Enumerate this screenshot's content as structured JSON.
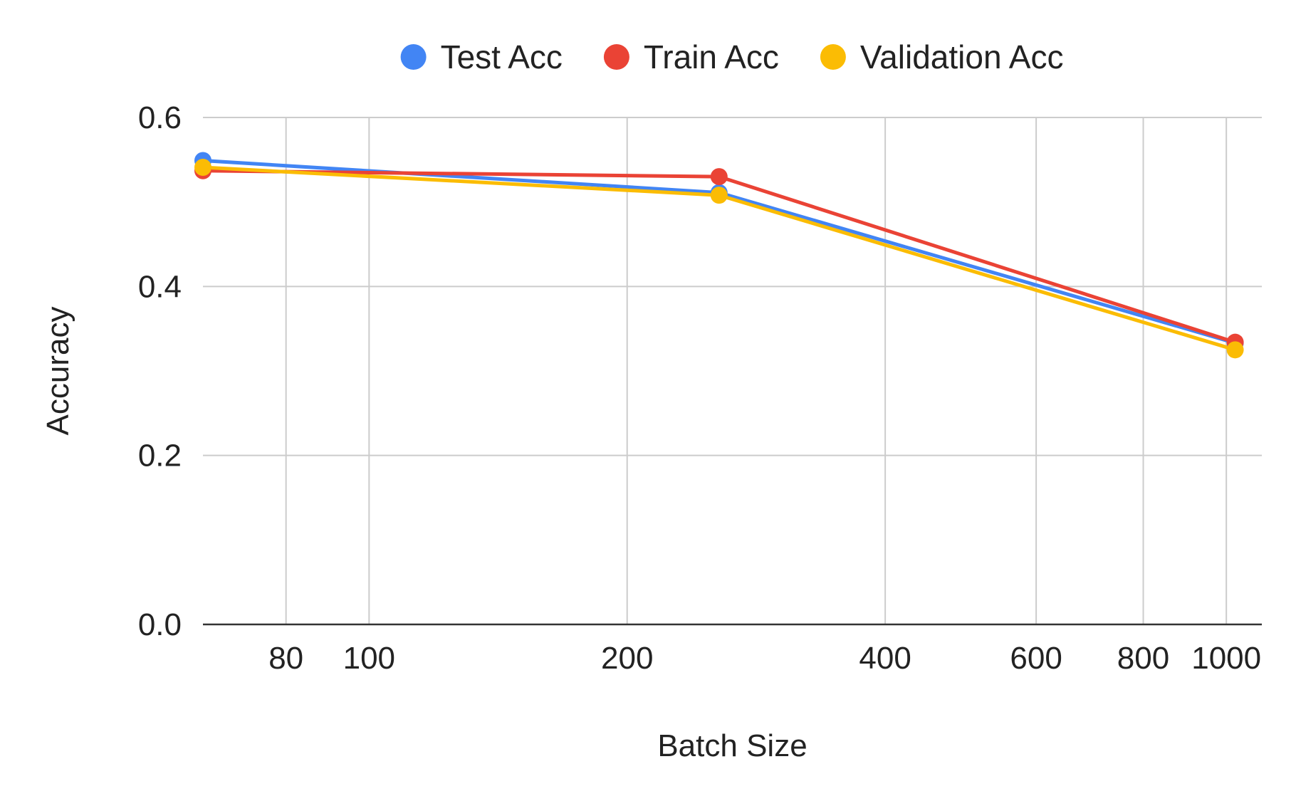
{
  "chart_data": {
    "type": "line",
    "xlabel": "Batch Size",
    "ylabel": "Accuracy",
    "x_scale": "log",
    "x_ticks": [
      80,
      100,
      200,
      400,
      600,
      800,
      1000
    ],
    "x_tick_labels": [
      "80",
      "100",
      "200",
      "400",
      "600",
      "800",
      "1000"
    ],
    "y_ticks": [
      0.0,
      0.2,
      0.4,
      0.6
    ],
    "y_tick_labels": [
      "0.0",
      "0.2",
      "0.4",
      "0.6"
    ],
    "xlim": [
      64,
      1100
    ],
    "ylim": [
      0,
      0.6
    ],
    "grid": true,
    "legend_position": "top",
    "x": [
      64,
      256,
      1024
    ],
    "series": [
      {
        "name": "Test Acc",
        "color": "#4285F4",
        "values": [
          0.549,
          0.511,
          0.333
        ]
      },
      {
        "name": "Train Acc",
        "color": "#EA4335",
        "values": [
          0.537,
          0.53,
          0.334
        ]
      },
      {
        "name": "Validation Acc",
        "color": "#FBBC04",
        "values": [
          0.541,
          0.508,
          0.325
        ]
      }
    ]
  }
}
